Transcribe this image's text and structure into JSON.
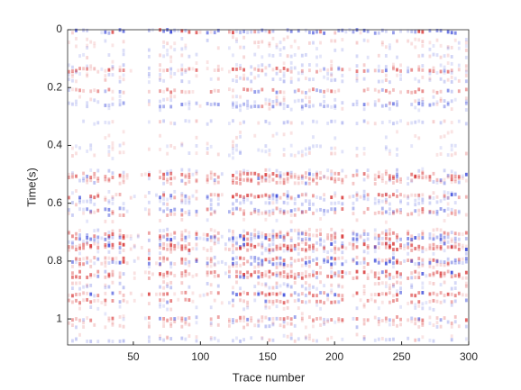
{
  "chart_data": {
    "type": "heatmap",
    "xlabel": "Trace number",
    "ylabel": "Time(s)",
    "xlim": [
      1,
      300
    ],
    "xticks": [
      50,
      100,
      150,
      200,
      250,
      300
    ],
    "ylim": [
      0,
      1.09
    ],
    "yticks": [
      0,
      0.2,
      0.4,
      0.6,
      0.8,
      1
    ],
    "y_reversed": true,
    "colors": [
      "#2b3bd6",
      "#ffffff",
      "#d62b2b"
    ]
  }
}
